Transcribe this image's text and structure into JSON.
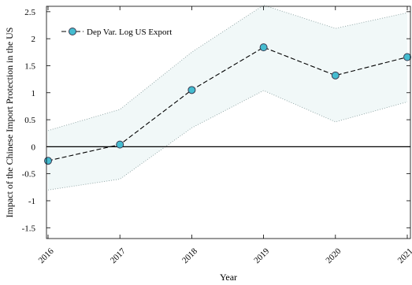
{
  "chart_data": {
    "type": "line",
    "title": "",
    "xlabel": "Year",
    "ylabel": "Impact of the Chinese Import Protection in the US",
    "x": [
      "2016",
      "2017",
      "2018",
      "2019",
      "2020",
      "2021"
    ],
    "ylim": [
      -1.7,
      2.6
    ],
    "yticks": [
      -1.5,
      -1,
      -0.5,
      0,
      0.5,
      1,
      1.5,
      2,
      2.5
    ],
    "ytick_labels": [
      "-1.5",
      "-1",
      "-0.5",
      "0",
      "0.5",
      "1",
      "1.5",
      "2",
      "2.5"
    ],
    "series": [
      {
        "name": "Dep Var. Log US Export",
        "values": [
          -0.26,
          0.04,
          1.05,
          1.84,
          1.32,
          1.66
        ],
        "ci_lower": [
          -0.8,
          -0.6,
          0.35,
          1.04,
          0.46,
          0.83
        ],
        "ci_upper": [
          0.3,
          0.69,
          1.75,
          2.62,
          2.19,
          2.48
        ]
      }
    ],
    "legend_position": "top-left",
    "grid": false,
    "colors": {
      "marker_fill": "#45bcd0",
      "marker_edge": "#3a3a50",
      "line": "#000000",
      "band_fill": "#f1f8f8",
      "band_edge": "#8aa0a0",
      "zero_line": "#000000"
    }
  }
}
